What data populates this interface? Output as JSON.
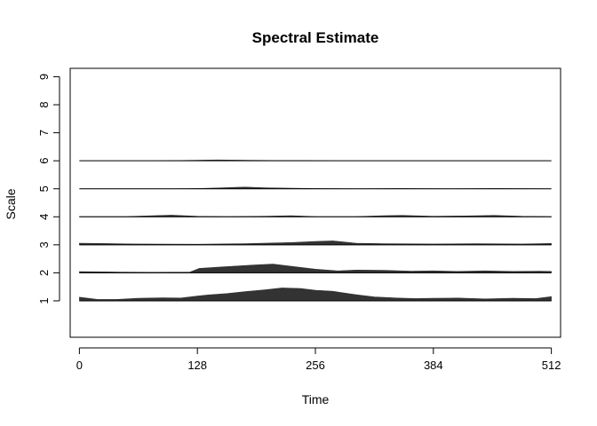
{
  "chart_data": {
    "type": "area",
    "title": "Spectral Estimate",
    "xlabel": "Time",
    "ylabel": "Scale",
    "xlim": [
      -10,
      522
    ],
    "ylim": [
      -0.3,
      9.3
    ],
    "x_ticks": [
      0,
      128,
      256,
      384,
      512
    ],
    "y_ticks": [
      1,
      2,
      3,
      4,
      5,
      6,
      7,
      8,
      9
    ],
    "grid": false,
    "fill_color": "#333333",
    "baseline_color": "#000000",
    "series": [
      {
        "scale": 1,
        "baseline": 1,
        "x": [
          0,
          20,
          40,
          64,
          90,
          110,
          128,
          140,
          160,
          180,
          200,
          220,
          240,
          256,
          275,
          300,
          320,
          345,
          365,
          384,
          410,
          440,
          470,
          495,
          512
        ],
        "height": [
          0.13,
          0.05,
          0.05,
          0.09,
          0.11,
          0.1,
          0.17,
          0.21,
          0.26,
          0.33,
          0.39,
          0.46,
          0.44,
          0.38,
          0.34,
          0.22,
          0.14,
          0.1,
          0.08,
          0.09,
          0.1,
          0.07,
          0.09,
          0.08,
          0.15
        ]
      },
      {
        "scale": 2,
        "baseline": 2,
        "x": [
          0,
          40,
          80,
          120,
          130,
          150,
          170,
          190,
          210,
          230,
          256,
          280,
          300,
          330,
          360,
          384,
          410,
          440,
          470,
          500,
          512
        ],
        "height": [
          0.04,
          0.03,
          0.02,
          0.03,
          0.16,
          0.2,
          0.24,
          0.28,
          0.31,
          0.23,
          0.13,
          0.07,
          0.1,
          0.09,
          0.06,
          0.07,
          0.05,
          0.07,
          0.05,
          0.06,
          0.05
        ]
      },
      {
        "scale": 3,
        "baseline": 3,
        "x": [
          0,
          60,
          128,
          180,
          230,
          256,
          275,
          300,
          330,
          384,
          430,
          480,
          512
        ],
        "height": [
          0.06,
          0.03,
          0.02,
          0.04,
          0.08,
          0.12,
          0.14,
          0.06,
          0.04,
          0.03,
          0.04,
          0.03,
          0.05
        ]
      },
      {
        "scale": 4,
        "baseline": 4,
        "x": [
          0,
          50,
          80,
          100,
          128,
          160,
          200,
          230,
          256,
          300,
          330,
          350,
          384,
          420,
          450,
          480,
          512
        ],
        "height": [
          0.01,
          0.01,
          0.04,
          0.06,
          0.02,
          0.01,
          0.02,
          0.04,
          0.01,
          0.01,
          0.04,
          0.05,
          0.02,
          0.03,
          0.05,
          0.02,
          0.01
        ]
      },
      {
        "scale": 5,
        "baseline": 5,
        "x": [
          0,
          100,
          128,
          150,
          170,
          180,
          200,
          230,
          256,
          300,
          350,
          400,
          450,
          512
        ],
        "height": [
          0.0,
          0.0,
          0.01,
          0.03,
          0.05,
          0.06,
          0.04,
          0.02,
          0.01,
          0.0,
          0.01,
          0.0,
          0.01,
          0.0
        ]
      },
      {
        "scale": 6,
        "baseline": 6,
        "x": [
          0,
          80,
          110,
          128,
          150,
          180,
          210,
          240,
          280,
          340,
          400,
          460,
          512
        ],
        "height": [
          0.0,
          0.0,
          0.01,
          0.02,
          0.03,
          0.02,
          0.01,
          0.01,
          0.0,
          0.0,
          0.0,
          0.0,
          0.0
        ]
      }
    ]
  }
}
